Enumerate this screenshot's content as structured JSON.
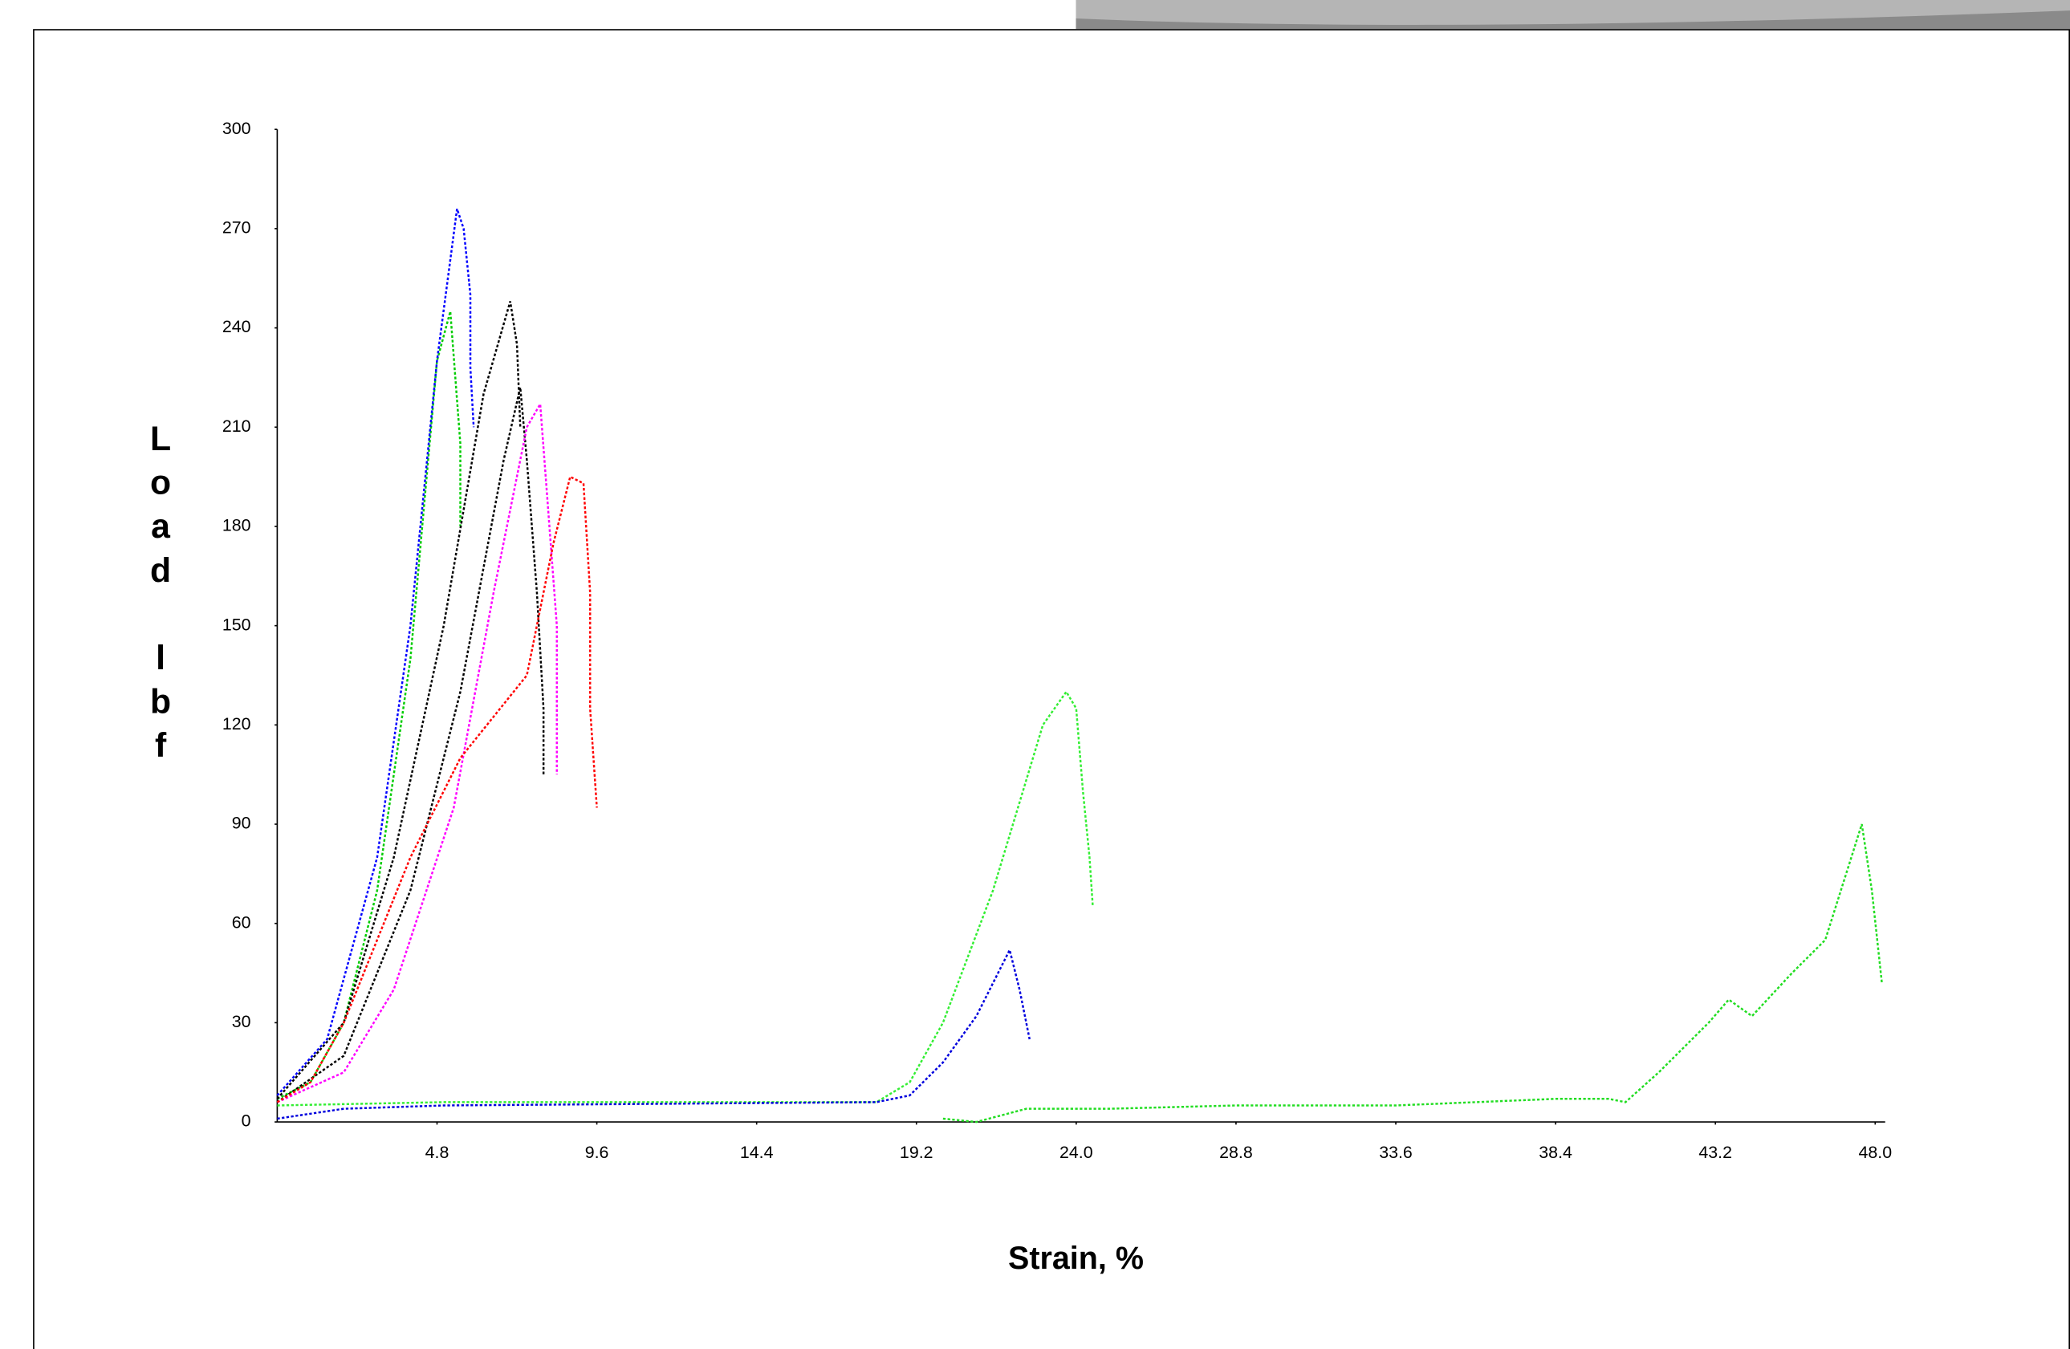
{
  "chart_data": {
    "type": "line",
    "xlabel": "Strain, %",
    "ylabel": "Load lbf",
    "xlim": [
      0,
      48.3
    ],
    "ylim": [
      0,
      300
    ],
    "xticks": [
      4.8,
      9.6,
      14.4,
      19.2,
      {
        "value": 24,
        "label": "24.0"
      },
      28.8,
      33.6,
      38.4,
      43.2,
      {
        "value": 48,
        "label": "48.0"
      }
    ],
    "yticks": [
      0,
      30,
      60,
      90,
      120,
      150,
      180,
      210,
      240,
      270,
      300
    ],
    "series": [
      {
        "color": "#00cc00",
        "x": [
          0,
          1,
          2,
          3,
          4,
          4.8,
          5.2,
          5.5,
          5.5
        ],
        "values": [
          7,
          12,
          30,
          70,
          140,
          230,
          245,
          205,
          180
        ]
      },
      {
        "color": "#0000ff",
        "x": [
          0,
          1.5,
          3,
          4,
          4.8,
          5.4,
          5.6,
          5.8,
          5.8,
          5.9
        ],
        "values": [
          8,
          25,
          80,
          150,
          230,
          276,
          270,
          250,
          228,
          210
        ]
      },
      {
        "color": "#000000",
        "x": [
          0,
          2,
          3.5,
          5,
          6.2,
          7,
          7.2,
          7.3
        ],
        "values": [
          7,
          30,
          80,
          150,
          220,
          248,
          235,
          210
        ]
      },
      {
        "color": "#000000",
        "x": [
          0,
          2,
          4,
          5.5,
          6.8,
          7.3,
          7.5,
          7.8,
          8,
          8
        ],
        "values": [
          6,
          20,
          70,
          130,
          200,
          222,
          200,
          160,
          125,
          105
        ]
      },
      {
        "color": "#ff00ff",
        "x": [
          0,
          2,
          3.5,
          5.3,
          6.5,
          7.5,
          7.9,
          8.1,
          8.4,
          8.4
        ],
        "values": [
          6,
          15,
          40,
          95,
          160,
          210,
          217,
          190,
          150,
          105
        ]
      },
      {
        "color": "#ff0000",
        "x": [
          0,
          1,
          2,
          4,
          5.5,
          7.5,
          8.3,
          8.8,
          9.2,
          9.4,
          9.4,
          9.6
        ],
        "values": [
          6,
          12,
          30,
          80,
          110,
          135,
          175,
          195,
          193,
          160,
          125,
          95
        ]
      },
      {
        "color": "#33ee33",
        "x": [
          0,
          5,
          18,
          19,
          20,
          21.5,
          23,
          23.7,
          24,
          24.2,
          24.4,
          24.5
        ],
        "values": [
          5,
          6,
          6,
          12,
          30,
          70,
          120,
          130,
          125,
          100,
          80,
          65
        ]
      },
      {
        "color": "#0000dd",
        "x": [
          0,
          2,
          5,
          18,
          19,
          20,
          21,
          22,
          22.3,
          22.6
        ],
        "values": [
          1,
          4,
          5,
          6,
          8,
          18,
          32,
          52,
          40,
          25
        ]
      },
      {
        "color": "#22dd22",
        "x": [
          20,
          21,
          22.5,
          25,
          28.8,
          33.6,
          38.4,
          40,
          40.5,
          41.5,
          43,
          43.6,
          44.3,
          45.5,
          46.5,
          47.6,
          47.9,
          48.2
        ],
        "values": [
          1,
          0,
          4,
          4,
          5,
          5,
          7,
          7,
          6,
          15,
          30,
          37,
          32,
          45,
          55,
          90,
          70,
          42
        ]
      }
    ]
  }
}
